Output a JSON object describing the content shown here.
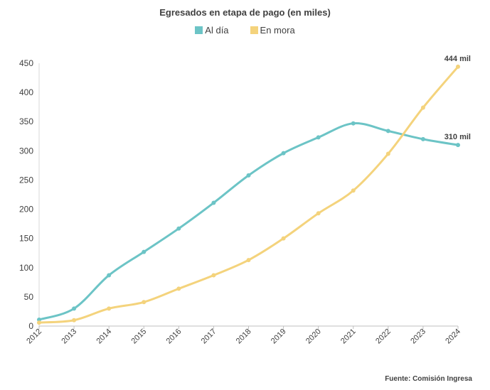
{
  "chart_data": {
    "type": "line",
    "title": "Egresados en etapa de pago (en miles)",
    "x": [
      "2012",
      "2013",
      "2014",
      "2015",
      "2016",
      "2017",
      "2018",
      "2019",
      "2020",
      "2021",
      "2022",
      "2023",
      "2024"
    ],
    "series": [
      {
        "name": "Al día",
        "color": "#6cc4c6",
        "values": [
          11,
          30,
          87,
          127,
          167,
          211,
          258,
          296,
          323,
          347,
          334,
          320,
          310
        ],
        "end_label": "310 mil"
      },
      {
        "name": "En mora",
        "color": "#f4d37c",
        "values": [
          6,
          10,
          30,
          41,
          64,
          87,
          113,
          150,
          193,
          232,
          295,
          374,
          444
        ],
        "end_label": "444 mil"
      }
    ],
    "ylim": [
      0,
      450
    ],
    "yticks": [
      0,
      50,
      100,
      150,
      200,
      250,
      300,
      350,
      400,
      450
    ],
    "grid": false,
    "legend_position": "top-center"
  },
  "source": "Fuente: Comisión Ingresa"
}
